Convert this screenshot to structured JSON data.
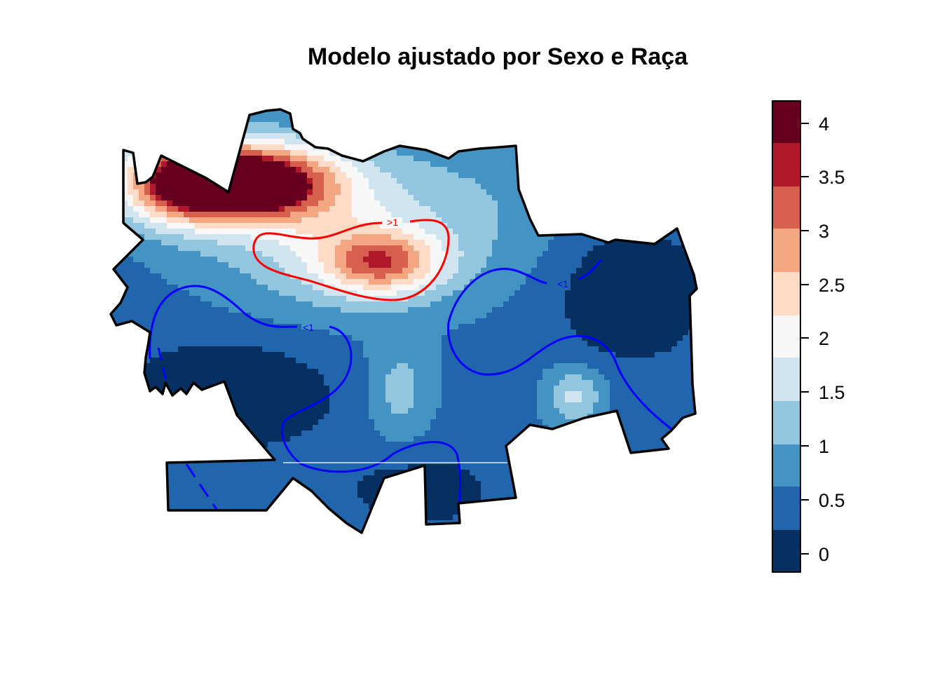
{
  "chart_data": {
    "type": "heatmap",
    "title": "Modelo ajustado por Sexo e Raça",
    "xlabel": "",
    "ylabel": "",
    "colorbar": {
      "ticks": [
        "0",
        "0.5",
        "1",
        "1.5",
        "2",
        "2.5",
        "3",
        "3.5",
        "4"
      ],
      "tick_values": [
        0,
        0.5,
        1,
        1.5,
        2,
        2.5,
        3,
        3.5,
        4
      ],
      "breaks": [
        -0.2,
        0,
        0.25,
        0.5,
        0.75,
        1,
        1.25,
        1.5,
        1.75,
        2,
        2.25,
        2.5,
        2.75,
        3,
        3.25,
        3.5,
        3.75,
        4,
        4.2
      ],
      "range": [
        -0.2,
        4.2
      ],
      "colors": [
        "#053061",
        "#2166ac",
        "#4393c3",
        "#92c5de",
        "#d1e5f0",
        "#f7f7f7",
        "#fddbc7",
        "#f4a582",
        "#d6604d",
        "#b2182b",
        "#67001f"
      ]
    },
    "contours": [
      {
        "label": ">1",
        "color": "#ff0000"
      },
      {
        "label": "<1",
        "color": "#0000ff"
      },
      {
        "label": "<1",
        "color": "#0000ff"
      }
    ]
  }
}
